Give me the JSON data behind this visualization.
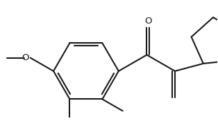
{
  "bg_color": "#ffffff",
  "line_color": "#1a1a1a",
  "line_width": 1.5,
  "fig_width": 3.14,
  "fig_height": 1.75,
  "dpi": 100
}
